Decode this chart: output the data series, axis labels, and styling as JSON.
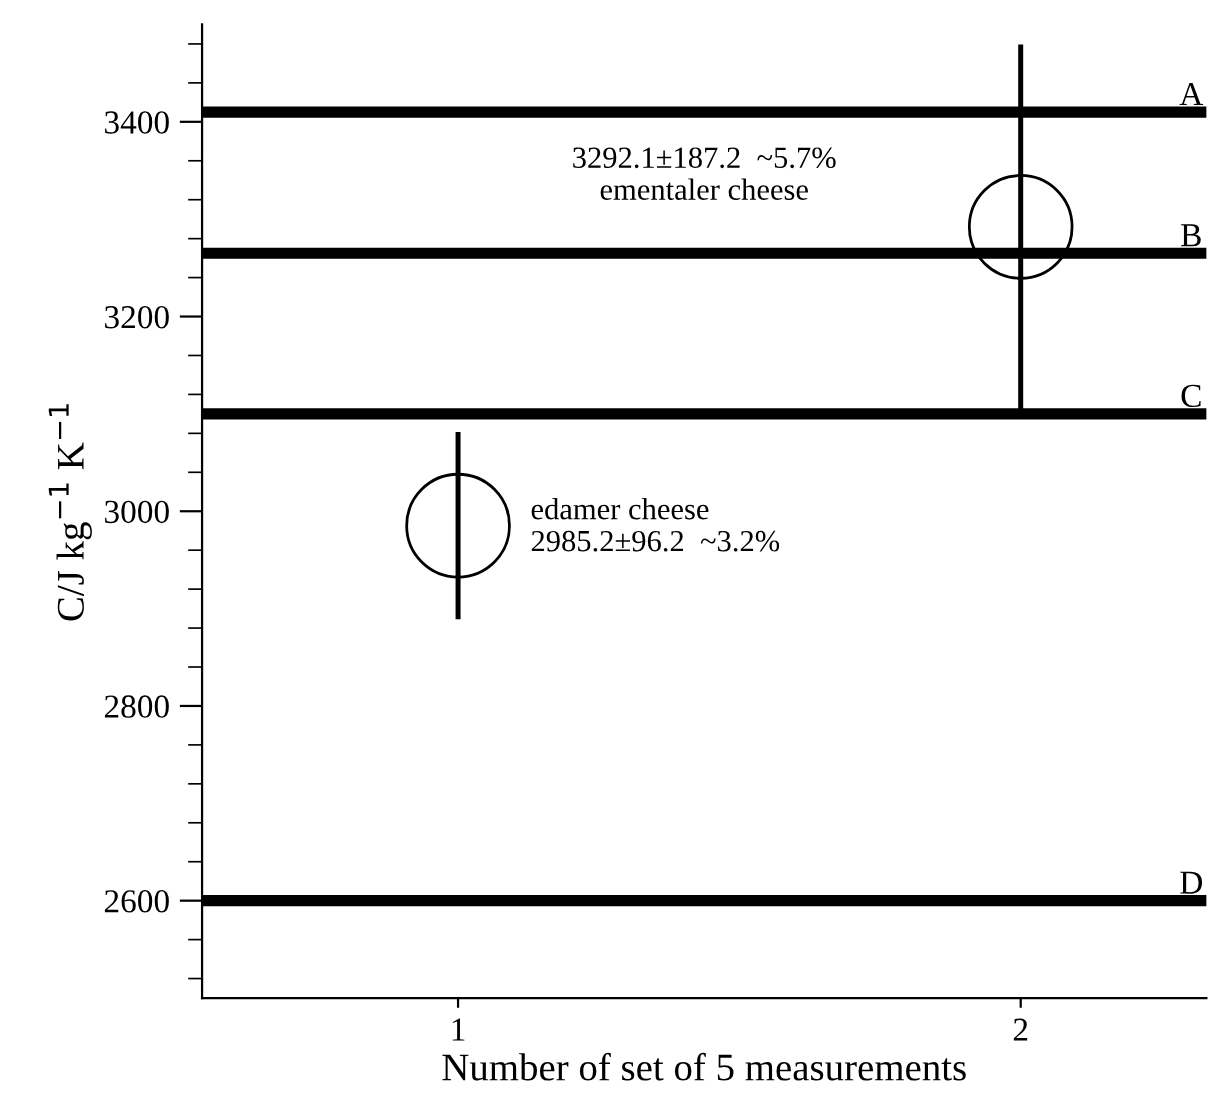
{
  "chart_data": {
    "type": "scatter",
    "xlabel": "Number of set of 5 measurements",
    "ylabel": "C/J kg$^{−1}$ K$^{−1}$",
    "x": [
      1,
      2
    ],
    "series": [
      {
        "color": "#000000",
        "values": [
          2985.2,
          3292.1
        ],
        "errors": [
          96.2,
          187.2
        ]
      }
    ],
    "marker": "circle",
    "xlim": [
      0.545,
      2.33
    ],
    "ylim": [
      2500,
      3500
    ],
    "xticks": [
      1,
      2
    ],
    "yticks": [
      2600,
      2800,
      3000,
      3200,
      3400
    ],
    "grid": false,
    "ref_lines": [
      {
        "axis": "y",
        "value": 3410,
        "label": "A",
        "color": "#000000"
      },
      {
        "axis": "y",
        "value": 3265,
        "label": "B",
        "color": "#000000"
      },
      {
        "axis": "y",
        "value": 3100,
        "label": "C",
        "color": "#000000"
      },
      {
        "axis": "y",
        "value": 2600,
        "label": "D",
        "color": "#000000"
      }
    ],
    "annotations": [
      "3292.1±187.2  ~5.7%\nementaler cheese",
      "edamer cheese\n2985.2±96.2  ~3.2%"
    ]
  }
}
